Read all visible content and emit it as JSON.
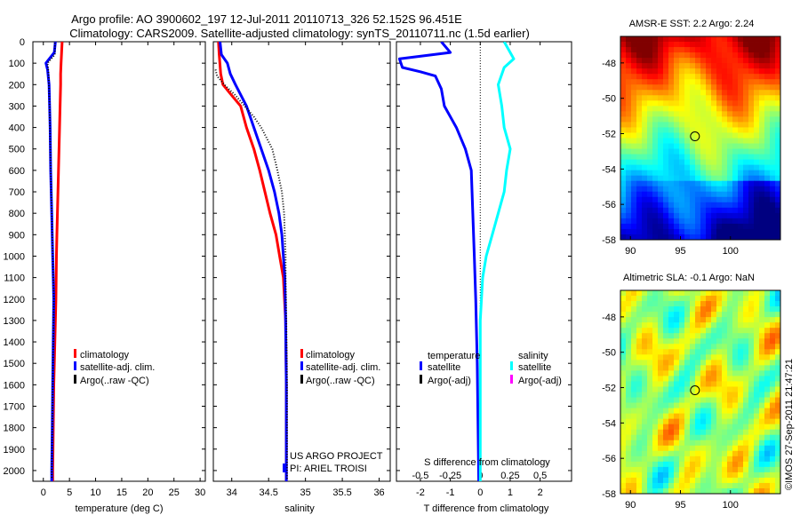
{
  "header": {
    "title_line1": "Argo profile: AO 3900602_197 12-Jul-2011 20110713_326 52.152S 96.451E",
    "title_line2": "Climatology: CARS2009. Satellite-adjusted climatology: synTS_20110711.nc (1.5d earlier)"
  },
  "credit": {
    "project": "US ARGO PROJECT",
    "pi": "PI: ARIEL TROISI",
    "stamp": "©IMOS 27-Sep-2011 21:47:21"
  },
  "colors": {
    "climatology": "#ff0000",
    "satellite": "#0000ff",
    "argo": "#000000",
    "salinity_satellite": "#00ffff",
    "salinity_argo": "#ff00ff"
  },
  "chart_data": [
    {
      "id": "temperature",
      "type": "line",
      "xlabel": "temperature (deg C)",
      "ylabel": "",
      "xlim": [
        -2,
        31
      ],
      "ylim": [
        2050,
        0
      ],
      "xticks": [
        0,
        5,
        10,
        15,
        20,
        25,
        30
      ],
      "yticks": [
        0,
        100,
        200,
        300,
        400,
        500,
        600,
        700,
        800,
        900,
        1000,
        1100,
        1200,
        1300,
        1400,
        1500,
        1600,
        1700,
        1800,
        1900,
        2000
      ],
      "legend_position": "lower-center",
      "series": [
        {
          "name": "climatology",
          "style": "solid",
          "color": "#ff0000",
          "points": [
            [
              3.6,
              0
            ],
            [
              3.5,
              50
            ],
            [
              3.4,
              100
            ],
            [
              3.3,
              150
            ],
            [
              3.3,
              200
            ],
            [
              3.2,
              300
            ],
            [
              3.1,
              400
            ],
            [
              3.0,
              500
            ],
            [
              2.9,
              600
            ],
            [
              2.8,
              700
            ],
            [
              2.7,
              800
            ],
            [
              2.6,
              900
            ],
            [
              2.5,
              1000
            ],
            [
              2.4,
              1200
            ],
            [
              2.2,
              1400
            ],
            [
              2.0,
              1600
            ],
            [
              1.9,
              1800
            ],
            [
              1.8,
              2000
            ],
            [
              1.8,
              2050
            ]
          ]
        },
        {
          "name": "satellite-adj. clim.",
          "style": "solid",
          "color": "#0000ff",
          "points": [
            [
              2.3,
              0
            ],
            [
              2.1,
              50
            ],
            [
              0.5,
              100
            ],
            [
              0.8,
              130
            ],
            [
              1.1,
              200
            ],
            [
              1.2,
              300
            ],
            [
              1.3,
              400
            ],
            [
              1.4,
              600
            ],
            [
              1.6,
              800
            ],
            [
              1.8,
              1000
            ],
            [
              1.9,
              1100
            ],
            [
              2.0,
              1200
            ],
            [
              1.9,
              1400
            ],
            [
              1.8,
              1600
            ],
            [
              1.7,
              1800
            ],
            [
              1.6,
              2000
            ],
            [
              1.6,
              2050
            ]
          ]
        },
        {
          "name": "Argo(..raw -QC)",
          "style": "dotted",
          "color": "#000000",
          "points": [
            [
              2.2,
              5
            ],
            [
              2.2,
              60
            ],
            [
              0.8,
              100
            ],
            [
              1.0,
              150
            ],
            [
              1.1,
              220
            ],
            [
              1.2,
              300
            ],
            [
              1.3,
              450
            ],
            [
              1.4,
              600
            ],
            [
              1.6,
              800
            ],
            [
              1.8,
              1000
            ],
            [
              2.0,
              1200
            ],
            [
              1.9,
              1400
            ],
            [
              1.8,
              1600
            ],
            [
              1.7,
              1800
            ],
            [
              1.6,
              2000
            ],
            [
              1.6,
              2040
            ]
          ]
        }
      ]
    },
    {
      "id": "salinity",
      "type": "line",
      "xlabel": "salinity",
      "ylabel": "",
      "xlim": [
        33.75,
        36.15
      ],
      "ylim": [
        2050,
        0
      ],
      "xticks": [
        34,
        34.5,
        35,
        35.5,
        36
      ],
      "legend_position": "lower-center",
      "series": [
        {
          "name": "climatology",
          "style": "solid",
          "color": "#ff0000",
          "points": [
            [
              33.82,
              0
            ],
            [
              33.83,
              60
            ],
            [
              33.85,
              150
            ],
            [
              33.88,
              200
            ],
            [
              34.0,
              250
            ],
            [
              34.12,
              300
            ],
            [
              34.2,
              400
            ],
            [
              34.3,
              500
            ],
            [
              34.38,
              600
            ],
            [
              34.45,
              700
            ],
            [
              34.52,
              800
            ],
            [
              34.6,
              900
            ],
            [
              34.65,
              1000
            ],
            [
              34.7,
              1100
            ],
            [
              34.73,
              1300
            ],
            [
              34.74,
              1600
            ],
            [
              34.74,
              2050
            ]
          ]
        },
        {
          "name": "satellite-adj. clim.",
          "style": "solid",
          "color": "#0000ff",
          "points": [
            [
              33.84,
              0
            ],
            [
              33.86,
              60
            ],
            [
              33.94,
              100
            ],
            [
              33.98,
              150
            ],
            [
              34.05,
              200
            ],
            [
              34.2,
              300
            ],
            [
              34.3,
              400
            ],
            [
              34.4,
              500
            ],
            [
              34.5,
              600
            ],
            [
              34.58,
              700
            ],
            [
              34.64,
              800
            ],
            [
              34.68,
              900
            ],
            [
              34.7,
              1000
            ],
            [
              34.72,
              1100
            ],
            [
              34.73,
              1300
            ],
            [
              34.74,
              1600
            ],
            [
              34.74,
              2050
            ]
          ]
        },
        {
          "name": "Argo(..raw -QC)",
          "style": "dotted",
          "color": "#000000",
          "points": [
            [
              33.78,
              130
            ],
            [
              33.8,
              160
            ],
            [
              33.9,
              200
            ],
            [
              34.05,
              250
            ],
            [
              34.3,
              350
            ],
            [
              34.4,
              400
            ],
            [
              34.55,
              500
            ],
            [
              34.62,
              600
            ],
            [
              34.68,
              700
            ],
            [
              34.71,
              800
            ],
            [
              34.72,
              900
            ],
            [
              34.73,
              1000
            ],
            [
              34.73,
              1100
            ],
            [
              34.74,
              1300
            ],
            [
              34.75,
              1600
            ],
            [
              34.75,
              2040
            ]
          ]
        }
      ]
    },
    {
      "id": "difference",
      "type": "line",
      "xlabel": "T difference from climatology",
      "xlabel_top": "S difference from climatology",
      "ylabel": "",
      "xlim": [
        -2.8,
        3.05
      ],
      "ylim": [
        2050,
        0
      ],
      "xticks": [
        -2,
        -1,
        0,
        1,
        2
      ],
      "xticks_s": [
        -0.5,
        -0.25,
        0,
        0.25,
        0.5
      ],
      "legend_position": "lower-center",
      "legend_titles": {
        "temperature": "temperature",
        "salinity": "salinity"
      },
      "series": [
        {
          "name": "satellite",
          "group": "temperature",
          "style": "solid",
          "color": "#0000ff",
          "points": [
            [
              -1.3,
              0
            ],
            [
              -1.0,
              50
            ],
            [
              -2.7,
              80
            ],
            [
              -2.6,
              120
            ],
            [
              -2.0,
              140
            ],
            [
              -1.5,
              160
            ],
            [
              -1.3,
              220
            ],
            [
              -1.2,
              300
            ],
            [
              -0.8,
              400
            ],
            [
              -0.5,
              500
            ],
            [
              -0.3,
              600
            ],
            [
              -0.25,
              800
            ],
            [
              -0.2,
              1000
            ],
            [
              -0.15,
              1200
            ],
            [
              -0.1,
              1500
            ],
            [
              -0.05,
              2050
            ]
          ]
        },
        {
          "name": "satellite",
          "group": "salinity",
          "style": "solid",
          "color": "#00ffff",
          "points": [
            [
              0.2,
              0
            ],
            [
              0.28,
              80
            ],
            [
              0.2,
              120
            ],
            [
              0.15,
              200
            ],
            [
              0.18,
              300
            ],
            [
              0.2,
              400
            ],
            [
              0.25,
              500
            ],
            [
              0.22,
              600
            ],
            [
              0.2,
              700
            ],
            [
              0.15,
              800
            ],
            [
              0.1,
              900
            ],
            [
              0.05,
              1000
            ],
            [
              0.02,
              1100
            ],
            [
              0.0,
              1300
            ],
            [
              0.0,
              2050
            ]
          ]
        }
      ],
      "legend_extra": [
        {
          "name": "Argo(-adj)",
          "group": "temperature",
          "color": "#000000"
        },
        {
          "name": "Argo(-adj)",
          "group": "salinity",
          "color": "#ff00ff"
        }
      ]
    },
    {
      "id": "sst_map",
      "type": "heatmap",
      "title": "AMSR-E SST: 2.2 Argo: 2.24",
      "xticks": [
        90,
        95,
        100
      ],
      "yticks": [
        -48,
        -50,
        -52,
        -54,
        -56,
        -58
      ],
      "xlim": [
        89,
        105
      ],
      "ylim": [
        -58,
        -46.5
      ],
      "marker": {
        "lon": 96.45,
        "lat": -52.15
      }
    },
    {
      "id": "sla_map",
      "type": "heatmap",
      "title": "Altimetric SLA: -0.1 Argo: NaN",
      "xticks": [
        90,
        95,
        100
      ],
      "yticks": [
        -48,
        -50,
        -52,
        -54,
        -56,
        -58
      ],
      "xlim": [
        89,
        105
      ],
      "ylim": [
        -58,
        -46.5
      ],
      "marker": {
        "lon": 96.45,
        "lat": -52.15
      }
    }
  ]
}
